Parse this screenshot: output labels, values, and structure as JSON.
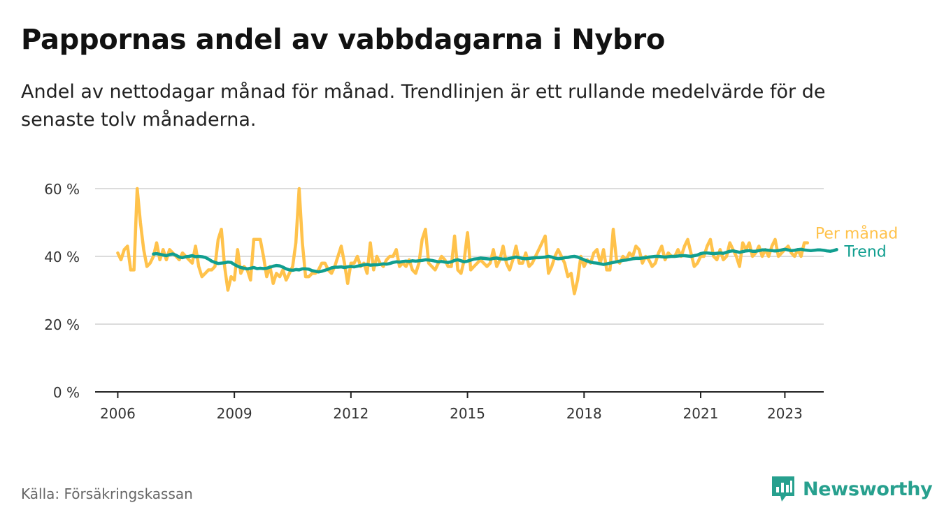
{
  "header": {
    "title": "Pappornas andel av vabbdagarna i Nybro",
    "subtitle": "Andel av nettodagar månad för månad. Trendlinjen är ett rullande medelvärde för de senaste tolv månaderna."
  },
  "footer": {
    "source": "Källa: Försäkringskassan",
    "brand": "Newsworthy",
    "brand_icon": "newsworthy-logo-icon",
    "brand_color": "#27a08e"
  },
  "chart_data": {
    "type": "line",
    "title": "Pappornas andel av vabbdagarna i Nybro",
    "ylim": [
      0,
      60
    ],
    "y_ticks": [
      0,
      20,
      40,
      60
    ],
    "y_tick_labels": [
      "0 %",
      "20 %",
      "40 %",
      "60 %"
    ],
    "xlim": [
      "2005-06",
      "2024-03"
    ],
    "x_ticks": [
      "2006-01",
      "2009-01",
      "2012-01",
      "2015-01",
      "2018-01",
      "2021-01",
      "2023-03"
    ],
    "x_tick_labels": [
      "2006",
      "2009",
      "2012",
      "2015",
      "2018",
      "2021",
      "2023"
    ],
    "grid": true,
    "series": [
      {
        "name": "Per månad",
        "color": "#ffc24b",
        "start": "2006-01",
        "values": [
          41,
          39,
          42,
          43,
          36,
          36,
          60,
          50,
          42,
          37,
          38,
          40,
          44,
          39,
          42,
          39,
          42,
          41,
          40,
          39,
          41,
          40,
          39,
          38,
          43,
          37,
          34,
          35,
          36,
          36,
          37,
          45,
          48,
          37,
          30,
          34,
          33,
          42,
          35,
          37,
          36,
          33,
          45,
          45,
          45,
          40,
          34,
          37,
          32,
          35,
          34,
          36,
          33,
          35,
          37,
          44,
          60,
          44,
          34,
          34,
          35,
          35,
          36,
          38,
          38,
          36,
          35,
          37,
          40,
          43,
          38,
          32,
          38,
          38,
          40,
          37,
          38,
          35,
          44,
          36,
          40,
          38,
          37,
          39,
          40,
          40,
          42,
          37,
          38,
          37,
          39,
          36,
          35,
          38,
          45,
          48,
          38,
          37,
          36,
          38,
          40,
          39,
          37,
          37,
          46,
          36,
          35,
          39,
          47,
          36,
          37,
          38,
          39,
          38,
          37,
          38,
          42,
          37,
          39,
          43,
          38,
          36,
          39,
          43,
          38,
          38,
          41,
          37,
          38,
          40,
          42,
          44,
          46,
          35,
          37,
          40,
          42,
          40,
          38,
          34,
          35,
          29,
          33,
          40,
          37,
          39,
          38,
          41,
          42,
          38,
          42,
          36,
          36,
          48,
          39,
          38,
          40,
          39,
          41,
          40,
          43,
          42,
          38,
          40,
          39,
          37,
          38,
          41,
          43,
          39,
          41,
          40,
          40,
          42,
          40,
          43,
          45,
          41,
          37,
          38,
          40,
          40,
          43,
          45,
          40,
          39,
          42,
          39,
          40,
          44,
          42,
          40,
          37,
          44,
          42,
          44,
          40,
          41,
          43,
          40,
          42,
          40,
          43,
          45,
          40,
          41,
          42,
          43,
          41,
          40,
          42,
          40,
          44,
          44
        ]
      },
      {
        "name": "Trend",
        "color": "#109e8f",
        "start": "2006-12",
        "values": [
          40.7,
          40.8,
          40.6,
          40.4,
          40.2,
          40.5,
          40.7,
          40.3,
          39.8,
          39.6,
          39.9,
          40.0,
          40.2,
          39.9,
          40.0,
          39.9,
          39.7,
          39.2,
          38.6,
          38.2,
          37.9,
          38.0,
          38.1,
          38.3,
          38.2,
          37.6,
          37.1,
          36.7,
          36.5,
          36.3,
          36.5,
          36.7,
          36.4,
          36.5,
          36.4,
          36.5,
          36.8,
          37.1,
          37.3,
          37.2,
          36.8,
          36.3,
          36.0,
          35.9,
          36.1,
          36.0,
          36.3,
          36.3,
          36.2,
          35.8,
          35.6,
          35.4,
          35.6,
          35.9,
          36.2,
          36.6,
          36.8,
          36.8,
          36.9,
          36.7,
          36.9,
          37.0,
          36.9,
          37.1,
          37.3,
          37.5,
          37.6,
          37.4,
          37.5,
          37.5,
          37.6,
          37.8,
          37.7,
          37.9,
          38.2,
          38.4,
          38.3,
          38.5,
          38.6,
          38.5,
          38.7,
          38.6,
          38.7,
          38.8,
          39.0,
          38.9,
          38.8,
          38.6,
          38.4,
          38.5,
          38.3,
          38.2,
          38.4,
          38.8,
          39.0,
          38.7,
          38.4,
          38.6,
          38.9,
          39.2,
          39.3,
          39.5,
          39.4,
          39.3,
          39.2,
          39.4,
          39.5,
          39.3,
          39.2,
          39.2,
          39.4,
          39.6,
          39.8,
          39.6,
          39.4,
          39.3,
          39.4,
          39.5,
          39.6,
          39.6,
          39.7,
          39.8,
          40.0,
          39.8,
          39.5,
          39.3,
          39.4,
          39.6,
          39.7,
          39.9,
          40.0,
          39.8,
          39.4,
          39.0,
          38.6,
          38.3,
          38.1,
          38.0,
          37.8,
          37.6,
          37.8,
          38.0,
          38.2,
          38.4,
          38.6,
          38.8,
          38.9,
          39.1,
          39.3,
          39.4,
          39.4,
          39.5,
          39.6,
          39.8,
          39.9,
          40.0,
          40.0,
          39.9,
          39.8,
          39.9,
          40.0,
          40.0,
          40.1,
          40.2,
          40.2,
          40.1,
          40.0,
          40.2,
          40.4,
          40.8,
          41.0,
          41.0,
          40.9,
          40.8,
          40.9,
          41.0,
          40.9,
          41.2,
          41.5,
          41.6,
          41.4,
          41.2,
          41.4,
          41.6,
          41.7,
          41.5,
          41.5,
          41.7,
          41.9,
          41.9,
          41.8,
          41.7,
          41.6,
          41.7,
          41.9,
          42.1,
          41.9,
          41.7,
          41.8,
          42.0,
          42.1,
          41.9,
          41.8,
          41.7,
          41.8,
          41.9,
          41.9,
          41.8,
          41.6,
          41.5,
          41.7,
          42.0
        ]
      }
    ]
  }
}
